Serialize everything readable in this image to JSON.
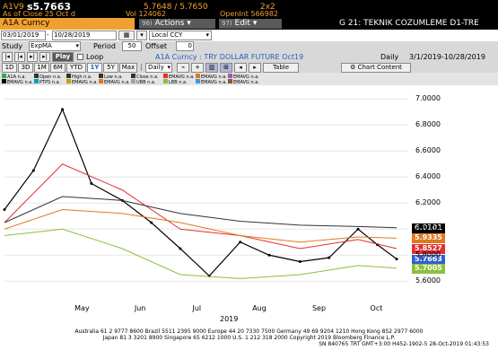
{
  "ticker": {
    "code": "A1V9",
    "last": "s5.7663",
    "bid_ask": "5.7648 / 5.7650",
    "size": "2x2",
    "close_label": "As of Close",
    "close_date": "25 Oct",
    "close_mark": "d",
    "vol_label": "Vol",
    "vol": "124062",
    "oi_label": "OpenInt",
    "oi": "566982"
  },
  "toolbar": {
    "security": "A1A Curncy",
    "actions": "Actions",
    "actions_num": "96)",
    "edit": "Edit",
    "edit_num": "97)",
    "page_title": "G 21: TEKNIK COZUMLEME D1-TRE"
  },
  "dates": {
    "start": "03/01/2019",
    "end": "10/28/2019",
    "currency": "Local CCY"
  },
  "study": {
    "label": "Study",
    "value": "ExpMA",
    "period_label": "Period",
    "period": "50",
    "offset_label": "Offset",
    "offset": "0"
  },
  "play": {
    "play": "Play",
    "loop": "Loop",
    "chart_title": "A1A Curncy : TRY DOLLAR FUTURE Oct19",
    "freq": "Daily",
    "range": "3/1/2019-10/28/2019"
  },
  "periods": [
    "1D",
    "3D",
    "1M",
    "6M",
    "YTD",
    "1Y",
    "5Y",
    "Max"
  ],
  "active_period": "1Y",
  "period_sep": "|",
  "toolbar2": {
    "freq_btn": "Daily",
    "table": "Table",
    "chart_content": "Chart Content"
  },
  "legend_row1": [
    {
      "label": "A1A",
      "value": "n.a.",
      "color": "#2fa84f"
    },
    {
      "label": "Open",
      "value": "n.a.",
      "color": "#333333"
    },
    {
      "label": "High",
      "value": "n.a.",
      "color": "#333333"
    },
    {
      "label": "Low",
      "value": "n.a.",
      "color": "#333333"
    },
    {
      "label": "Close",
      "value": "n.a.",
      "color": "#333333"
    },
    {
      "label": "EMAVG",
      "value": "n.a.",
      "color": "#e03030"
    },
    {
      "label": "EMAVG",
      "value": "n.a.",
      "color": "#e07820"
    },
    {
      "label": "EMAVG",
      "value": "n.a.",
      "color": "#9b59b6"
    }
  ],
  "legend_row2": [
    {
      "label": "EMAVG",
      "value": "n.a.",
      "color": "#000000"
    },
    {
      "label": "PTPS",
      "value": "n.a.",
      "color": "#00a0c8"
    },
    {
      "label": "EMAVG",
      "value": "n.a.",
      "color": "#c8a000"
    },
    {
      "label": "EMAVG",
      "value": "n.a.",
      "color": "#e07820"
    },
    {
      "label": "UBB",
      "value": "n.a.",
      "color": "#a0a0a0"
    },
    {
      "label": "LBB",
      "value": "n.a.",
      "color": "#8cc03c"
    },
    {
      "label": "EMAVG",
      "value": "n.a.",
      "color": "#30a0e0"
    },
    {
      "label": "EMAVG",
      "value": "n.a.",
      "color": "#8b5a2b"
    }
  ],
  "axis": {
    "y_ticks": [
      "7.0000",
      "6.8000",
      "6.6000",
      "6.4000",
      "6.2000",
      "6.0000",
      "5.8000",
      "5.6000"
    ],
    "x_months": [
      "May",
      "Jun",
      "Jul",
      "Aug",
      "Sep",
      "Oct"
    ],
    "year": "2019"
  },
  "price_labels": [
    {
      "value": "6.0101",
      "color": "#000000"
    },
    {
      "value": "5.9335",
      "color": "#e07820"
    },
    {
      "value": "5.8527",
      "color": "#e03030"
    },
    {
      "value": "5.7663",
      "color": "#3060d0"
    },
    {
      "value": "5.7005",
      "color": "#8cc03c"
    }
  ],
  "footer": {
    "line1": "Australia 61 2 9777 8600 Brazil 5511 2395 9000 Europe 44 20 7330 7500 Germany 49 69 9204 1210 Hong Kong 852 2977 6000",
    "line2": "Japan 81 3 3201 8900          Singapore 65 6212 1000          U.S. 1 212 318 2000          Copyright 2019 Bloomberg Finance L.P.",
    "line3": "SN 840765 TRT  GMT+3:00 H452-1902-5 28-Oct-2019 01:43:53"
  },
  "chart_data": {
    "type": "line",
    "title": "A1A Curncy : TRY DOLLAR FUTURE Oct19",
    "ylim": [
      5.45,
      7.05
    ],
    "x_range": [
      "2019-04-05",
      "2019-10-31"
    ],
    "series": [
      {
        "name": "A1A",
        "color": "#000000",
        "dates": [
          "2019-04-05",
          "2019-04-20",
          "2019-05-05",
          "2019-05-20",
          "2019-06-05",
          "2019-06-20",
          "2019-07-05",
          "2019-07-20",
          "2019-08-05",
          "2019-08-20",
          "2019-09-05",
          "2019-09-20",
          "2019-10-05",
          "2019-10-15",
          "2019-10-25"
        ],
        "values": [
          6.15,
          6.45,
          6.92,
          6.35,
          6.22,
          6.05,
          5.85,
          5.64,
          5.9,
          5.8,
          5.75,
          5.78,
          6.0,
          5.88,
          5.77
        ]
      },
      {
        "color": "#e03030",
        "dates": [
          "2019-04-05",
          "2019-05-05",
          "2019-06-05",
          "2019-07-05",
          "2019-08-05",
          "2019-09-05",
          "2019-10-05",
          "2019-10-25"
        ],
        "values": [
          6.05,
          6.5,
          6.3,
          6.0,
          5.95,
          5.85,
          5.92,
          5.85
        ]
      },
      {
        "color": "#e07820",
        "dates": [
          "2019-04-05",
          "2019-05-05",
          "2019-06-05",
          "2019-07-05",
          "2019-08-05",
          "2019-09-05",
          "2019-10-05",
          "2019-10-25"
        ],
        "values": [
          6.0,
          6.15,
          6.12,
          6.05,
          5.95,
          5.9,
          5.94,
          5.93
        ]
      },
      {
        "color": "#333333",
        "dates": [
          "2019-04-05",
          "2019-05-05",
          "2019-06-05",
          "2019-07-05",
          "2019-08-05",
          "2019-09-05",
          "2019-10-05",
          "2019-10-25"
        ],
        "values": [
          6.05,
          6.25,
          6.22,
          6.12,
          6.06,
          6.03,
          6.02,
          6.01
        ]
      },
      {
        "color": "#8cc03c",
        "dates": [
          "2019-04-05",
          "2019-05-05",
          "2019-06-05",
          "2019-07-05",
          "2019-08-05",
          "2019-09-05",
          "2019-10-05",
          "2019-10-25"
        ],
        "values": [
          5.95,
          6.0,
          5.85,
          5.65,
          5.62,
          5.65,
          5.72,
          5.7
        ]
      }
    ]
  }
}
